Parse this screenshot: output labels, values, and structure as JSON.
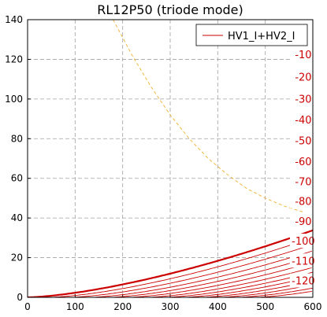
{
  "chart_data": {
    "type": "line",
    "title": "RL12P50 (triode mode)",
    "xlabel": "",
    "ylabel": "",
    "xlim": [
      0,
      600
    ],
    "ylim": [
      0,
      140
    ],
    "xticks": [
      0,
      100,
      200,
      300,
      400,
      500,
      600
    ],
    "yticks": [
      0,
      20,
      40,
      60,
      80,
      100,
      120,
      140
    ],
    "grid": true,
    "legend": {
      "position": "top-right",
      "entries": [
        "HV1_I+HV2_I"
      ]
    },
    "colors": {
      "curves": "#cc0000",
      "load_line": "#f0b030",
      "grid": "#a0a0a0"
    },
    "load_line": {
      "style": "dashed",
      "x": [
        180,
        220,
        260,
        300,
        340,
        380,
        420,
        460,
        500,
        540,
        580
      ],
      "y": [
        140,
        122,
        106,
        92,
        80,
        70,
        62,
        55,
        50,
        46,
        43
      ]
    },
    "series": [
      {
        "name": "0",
        "label": "",
        "cutoff": 0,
        "bold": true
      },
      {
        "name": "-10",
        "label": "-10",
        "cutoff": 45
      },
      {
        "name": "-20",
        "label": "-20",
        "cutoff": 88
      },
      {
        "name": "-30",
        "label": "-30",
        "cutoff": 130
      },
      {
        "name": "-40",
        "label": "-40",
        "cutoff": 170
      },
      {
        "name": "-50",
        "label": "-50",
        "cutoff": 210
      },
      {
        "name": "-60",
        "label": "-60",
        "cutoff": 250
      },
      {
        "name": "-70",
        "label": "-70",
        "cutoff": 288
      },
      {
        "name": "-80",
        "label": "-80",
        "cutoff": 326
      },
      {
        "name": "-90",
        "label": "-90",
        "cutoff": 364
      },
      {
        "name": "-100",
        "label": "-100",
        "cutoff": 402
      },
      {
        "name": "-110",
        "label": "-110",
        "cutoff": 440
      },
      {
        "name": "-120",
        "label": "-120",
        "cutoff": 478
      }
    ],
    "curve_model": {
      "k": 0.0023,
      "exponent": 1.5
    }
  }
}
